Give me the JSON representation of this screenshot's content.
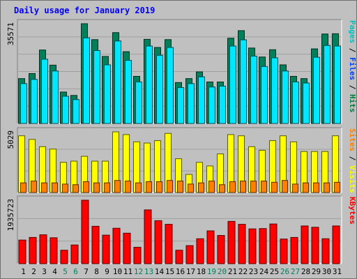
{
  "chart_data": {
    "type": "bar",
    "title": "Daily usage for January 2019",
    "categories": [
      "1",
      "2",
      "3",
      "4",
      "5",
      "6",
      "7",
      "8",
      "9",
      "10",
      "11",
      "12",
      "13",
      "14",
      "15",
      "16",
      "17",
      "18",
      "19",
      "20",
      "21",
      "22",
      "23",
      "24",
      "25",
      "26",
      "27",
      "28",
      "29",
      "30",
      "31"
    ],
    "weekend_days": [
      5,
      6,
      12,
      13,
      19,
      20,
      26,
      27
    ],
    "panels": [
      {
        "ylabel_parts": [
          "Pages",
          "Files",
          "Hits"
        ],
        "ylabel_colors": [
          "#00c0c0",
          "#0040ff",
          "#008040"
        ],
        "ymax_label": "35571",
        "ymax": 35571,
        "series": [
          {
            "name": "Hits",
            "color": "#00805a",
            "values": [
              16000,
              17800,
              26200,
              20800,
              11200,
              10000,
              35571,
              29900,
              23900,
              32400,
              25600,
              16800,
              30000,
              27100,
              29900,
              14600,
              16000,
              18400,
              14800,
              14800,
              30400,
              33100,
              26900,
              23700,
              26300,
              20900,
              16800,
              16000,
              26600,
              31900,
              32000
            ]
          },
          {
            "name": "Files",
            "color": "#00a8e8",
            "values": [
              14200,
              15700,
              22900,
              18700,
              9700,
              8500,
              30500,
              26000,
              20900,
              29400,
              22500,
              14800,
              27600,
              24300,
              27100,
              12800,
              14200,
              16600,
              13000,
              13300,
              27600,
              29800,
              24000,
              20300,
              23400,
              18700,
              14800,
              14400,
              23600,
              27800,
              27600
            ]
          },
          {
            "name": "Pages",
            "color": "#00e8ff",
            "values": [
              14200,
              15700,
              22900,
              18700,
              9700,
              8500,
              30500,
              26000,
              20900,
              29400,
              22500,
              14800,
              27600,
              24300,
              27100,
              12800,
              14200,
              16600,
              13000,
              13300,
              27600,
              29800,
              24000,
              20300,
              23400,
              18700,
              14800,
              14400,
              23600,
              27800,
              27600
            ]
          }
        ]
      },
      {
        "ylabel_parts": [
          "Sites",
          "Visits"
        ],
        "ylabel_colors": [
          "#ff8000",
          "#ffff00"
        ],
        "ymax_label": "5029",
        "ymax": 5029,
        "series": [
          {
            "name": "Visits",
            "color": "#ffff00",
            "values": [
              4700,
              4400,
              3800,
              3600,
              2500,
              2600,
              3000,
              2600,
              2600,
              5029,
              4800,
              4200,
              4100,
              4300,
              4900,
              2800,
              1500,
              2500,
              2200,
              3200,
              4800,
              4700,
              3800,
              3500,
              4300,
              4700,
              4200,
              3400,
              3400,
              3400,
              4700
            ]
          },
          {
            "name": "Sites",
            "color": "#ff8000",
            "values": [
              800,
              950,
              800,
              800,
              700,
              650,
              900,
              800,
              800,
              1000,
              950,
              800,
              900,
              900,
              1000,
              950,
              700,
              800,
              950,
              650,
              900,
              950,
              950,
              950,
              850,
              1000,
              700,
              800,
              800,
              800,
              850
            ]
          }
        ]
      },
      {
        "ylabel_parts": [
          "KBytes"
        ],
        "ylabel_colors": [
          "#ff0000"
        ],
        "ymax_label": "1935723",
        "ymax": 1935723,
        "series": [
          {
            "name": "KBytes",
            "color": "#ff0000",
            "values": [
              720000,
              800000,
              880000,
              790000,
              410000,
              570000,
              1935723,
              1140000,
              870000,
              1080000,
              930000,
              500000,
              1640000,
              1310000,
              1200000,
              410000,
              550000,
              760000,
              1000000,
              860000,
              1290000,
              1200000,
              1060000,
              1070000,
              1210000,
              750000,
              800000,
              1150000,
              1110000,
              760000,
              1150000
            ]
          }
        ]
      }
    ]
  }
}
